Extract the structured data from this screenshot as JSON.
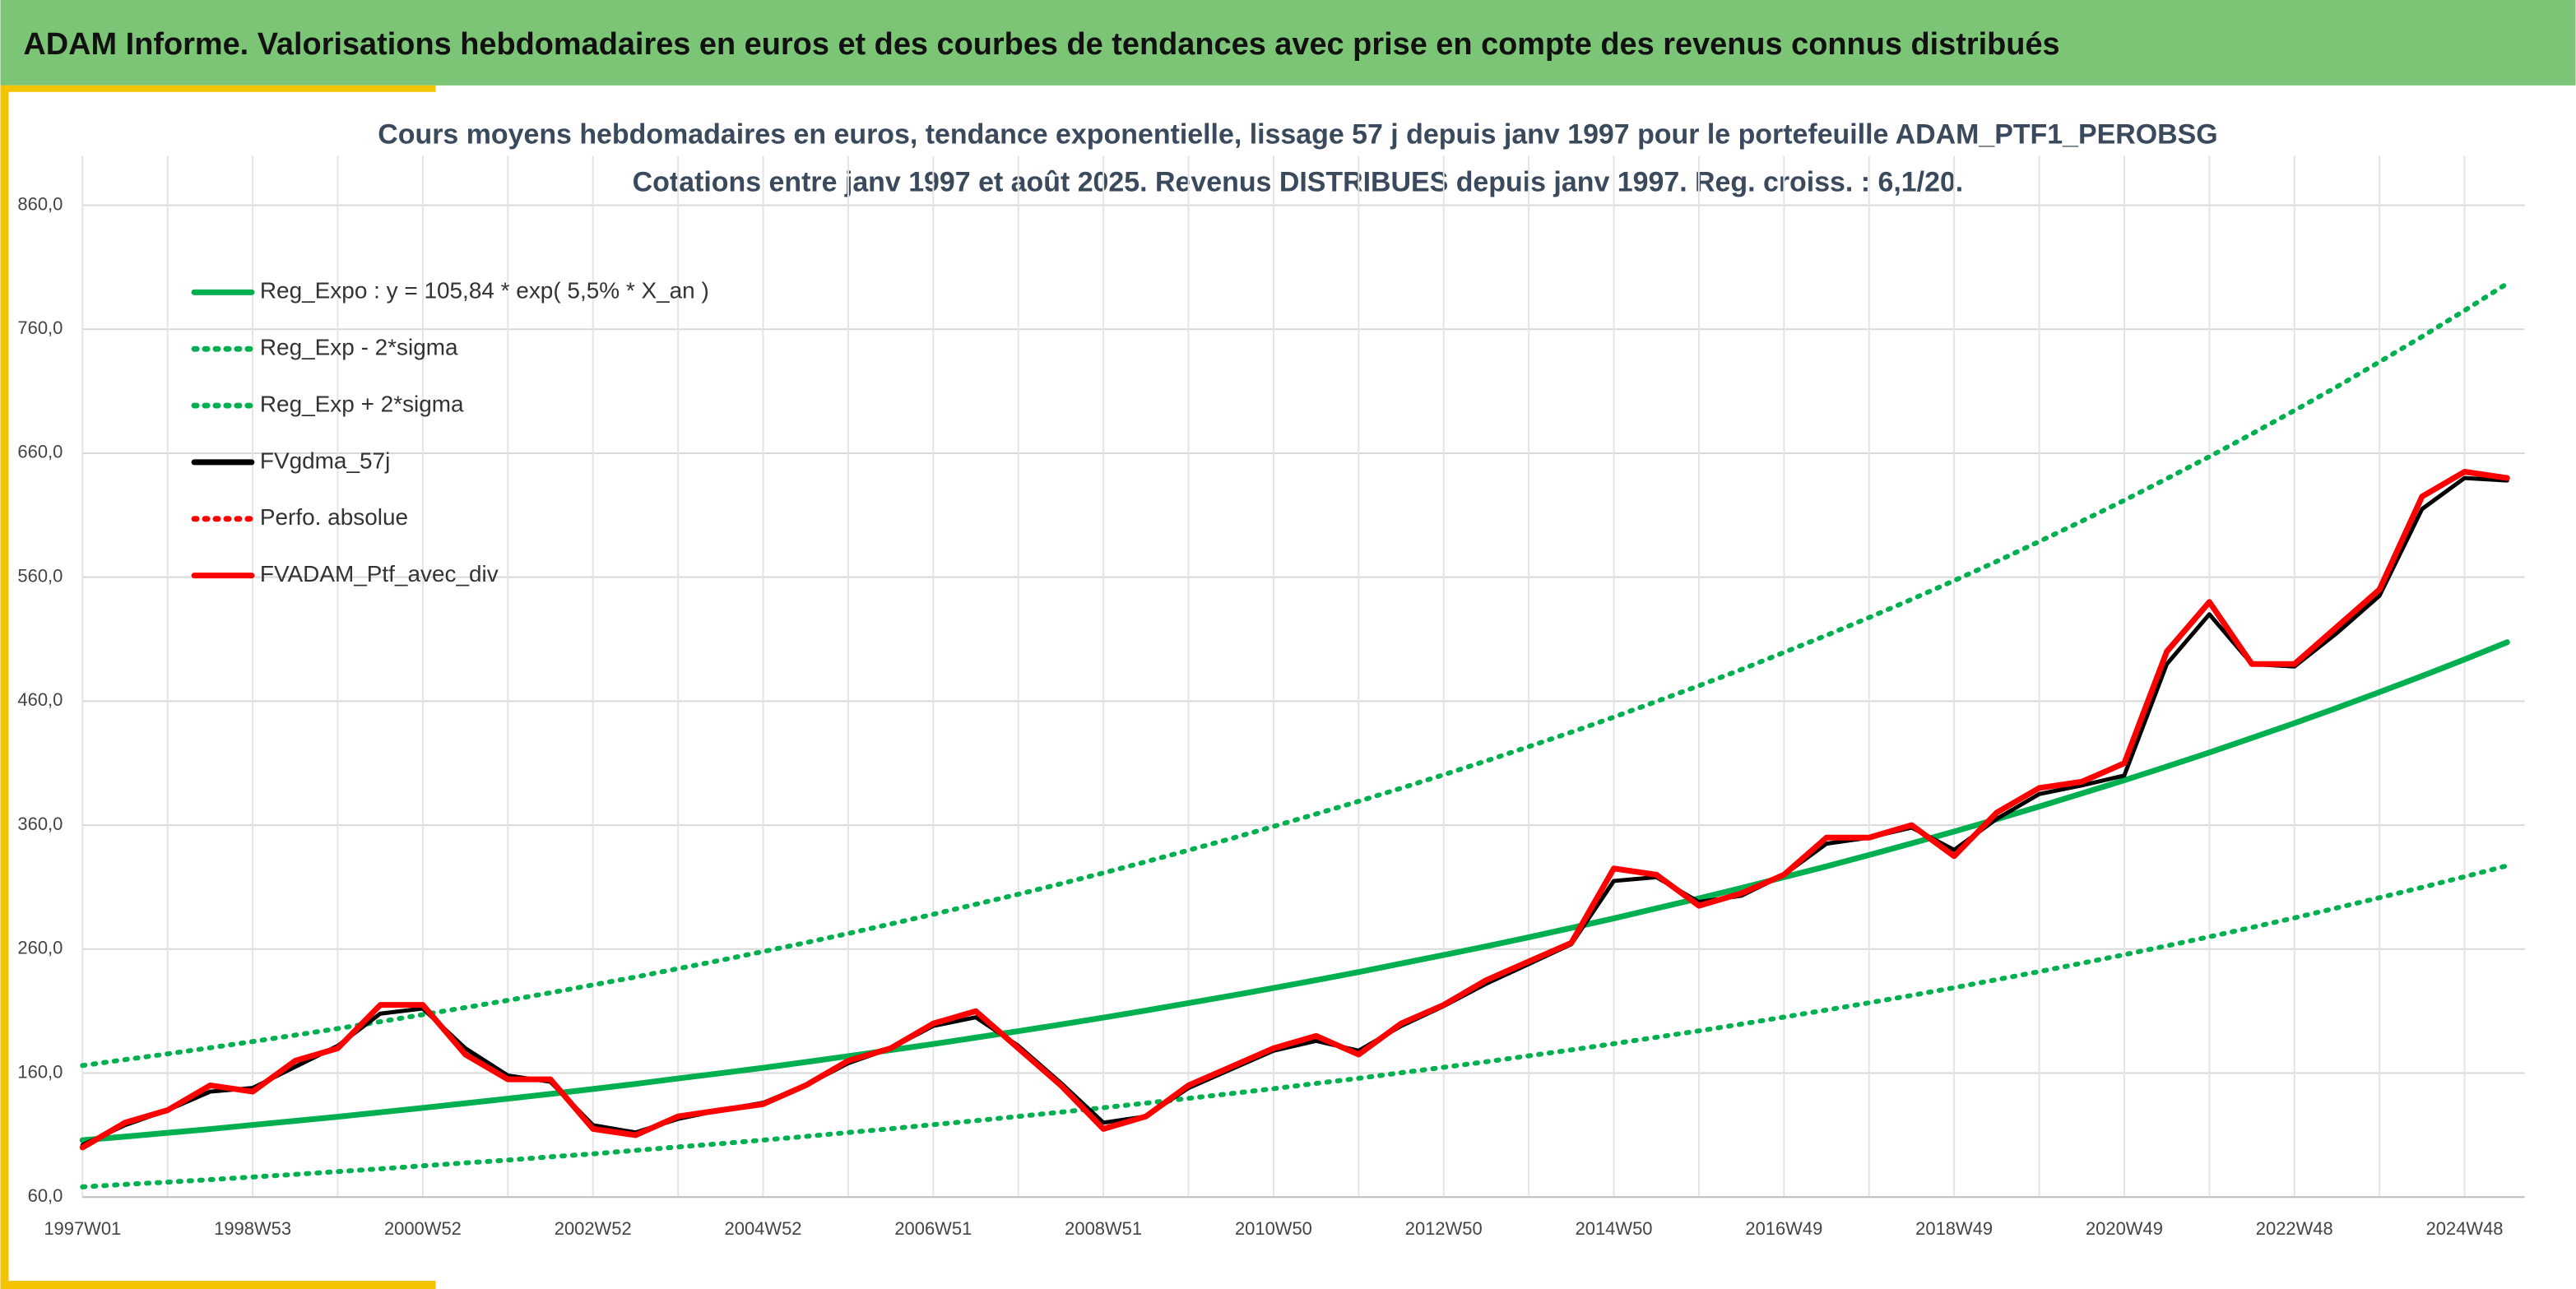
{
  "header": {
    "title": "ADAM Informe. Valorisations hebdomadaires en euros et des courbes de tendances avec prise en compte des revenus connus distribués"
  },
  "chart_data": {
    "type": "line",
    "title": "Cours moyens hebdomadaires en euros, tendance exponentielle, lissage 57 j depuis janv 1997 pour le portefeuille ADAM_PTF1_PEROBSG",
    "subtitle": "Cotations entre janv 1997 et août 2025. Revenus DISTRIBUES depuis janv 1997. Reg. croiss. : 6,1/20.",
    "categories": [
      "1997W01",
      null,
      null,
      null,
      "1998W53",
      null,
      null,
      null,
      "2000W52",
      null,
      null,
      null,
      "2002W52",
      null,
      null,
      null,
      "2004W52",
      null,
      null,
      null,
      "2006W51",
      null,
      null,
      null,
      "2008W51",
      null,
      null,
      null,
      "2010W50",
      null,
      null,
      null,
      "2012W50",
      null,
      null,
      null,
      "2014W50",
      null,
      null,
      null,
      "2016W49",
      null,
      null,
      null,
      "2018W49",
      null,
      null,
      null,
      "2020W49",
      null,
      null,
      null,
      "2022W48",
      null,
      null,
      null,
      "2024W48",
      null
    ],
    "ylim": [
      60,
      860
    ],
    "yticks": [
      {
        "value": 60,
        "label": "60,0"
      },
      {
        "value": 160,
        "label": "160,0"
      },
      {
        "value": 260,
        "label": "260,0"
      },
      {
        "value": 360,
        "label": "360,0"
      },
      {
        "value": 460,
        "label": "460,0"
      },
      {
        "value": 560,
        "label": "560,0"
      },
      {
        "value": 660,
        "label": "660,0"
      },
      {
        "value": 760,
        "label": "760,0"
      },
      {
        "value": 860,
        "label": "860,0"
      }
    ],
    "grid": true,
    "series": [
      {
        "name": "Reg_Expo : y = 105,84 * exp( 5,5% *  X_an )",
        "color": "#00b050",
        "style": "solid",
        "values": [
          105.8,
          108.8,
          111.8,
          114.9,
          118.1,
          121.4,
          124.8,
          128.3,
          131.9,
          135.6,
          139.3,
          143.2,
          147.2,
          151.3,
          155.6,
          159.9,
          164.3,
          168.9,
          173.6,
          178.5,
          183.5,
          188.6,
          193.8,
          199.2,
          204.8,
          210.5,
          216.4,
          222.4,
          228.6,
          235.0,
          241.5,
          248.3,
          255.2,
          262.3,
          269.6,
          277.1,
          284.8,
          292.8,
          300.9,
          309.3,
          318.0,
          326.8,
          335.9,
          345.3,
          354.9,
          364.8,
          375.0,
          385.5,
          396.2,
          407.3,
          418.6,
          430.3,
          442.3,
          454.6,
          467.3,
          480.3,
          493.7,
          507.5
        ]
      },
      {
        "name": "Reg_Exp - 2*sigma",
        "color": "#00b050",
        "style": "dotted",
        "values": [
          68.2,
          70.2,
          72.1,
          74.1,
          76.2,
          78.3,
          80.5,
          82.8,
          85.1,
          87.5,
          89.8,
          92.4,
          94.9,
          97.6,
          100.4,
          103.1,
          106.0,
          108.9,
          112.0,
          115.1,
          118.4,
          121.6,
          125.0,
          128.5,
          132.1,
          135.8,
          139.6,
          143.4,
          147.4,
          151.6,
          155.8,
          160.2,
          164.6,
          169.2,
          173.9,
          178.7,
          183.7,
          188.9,
          194.1,
          199.5,
          205.1,
          210.8,
          216.7,
          222.7,
          228.9,
          235.3,
          241.9,
          248.6,
          255.5,
          262.7,
          270.0,
          277.5,
          285.2,
          293.2,
          301.4,
          309.8,
          318.4,
          327.3
        ]
      },
      {
        "name": "Reg_Exp + 2*sigma",
        "color": "#00b050",
        "style": "dotted",
        "values": [
          166.1,
          170.8,
          175.5,
          180.4,
          185.4,
          190.6,
          195.9,
          201.4,
          207.1,
          212.9,
          218.7,
          224.8,
          231.1,
          237.5,
          244.3,
          251.0,
          258.0,
          265.2,
          272.6,
          280.2,
          288.1,
          296.1,
          304.3,
          312.7,
          321.5,
          330.5,
          339.7,
          349.2,
          358.9,
          369.0,
          379.2,
          389.8,
          400.7,
          411.8,
          423.3,
          435.0,
          447.1,
          459.7,
          472.4,
          485.6,
          499.3,
          513.1,
          527.4,
          542.1,
          557.2,
          572.7,
          588.8,
          605.2,
          622.0,
          639.5,
          657.2,
          675.6,
          694.4,
          713.7,
          733.7,
          754.1,
          775.1,
          796.8
        ]
      },
      {
        "name": "FVgdma_57j",
        "color": "#000000",
        "style": "solid",
        "values": [
          102,
          118,
          130,
          145,
          148,
          165,
          182,
          208,
          212,
          180,
          158,
          153,
          118,
          112,
          123,
          130,
          136,
          150,
          168,
          180,
          198,
          205,
          182,
          152,
          120,
          125,
          148,
          163,
          178,
          186,
          178,
          198,
          214,
          232,
          248,
          264,
          315,
          318,
          298,
          303,
          320,
          345,
          350,
          358,
          340,
          365,
          385,
          392,
          400,
          490,
          530,
          490,
          488,
          515,
          545,
          615,
          640,
          638
        ]
      },
      {
        "name": "Perfo. absolue",
        "color": "#ff0000",
        "style": "dotted",
        "values": [
          100,
          120,
          130,
          150,
          145,
          170,
          180,
          215,
          215,
          175,
          155,
          155,
          115,
          110,
          125,
          130,
          135,
          150,
          170,
          180,
          200,
          210,
          180,
          150,
          115,
          125,
          150,
          165,
          180,
          190,
          175,
          200,
          215,
          235,
          250,
          265,
          325,
          320,
          295,
          305,
          320,
          350,
          350,
          360,
          335,
          370,
          390,
          395,
          410,
          500,
          540,
          490,
          490,
          520,
          550,
          625,
          645,
          640
        ]
      },
      {
        "name": "FVADAM_Ptf_avec_div",
        "color": "#ff0000",
        "style": "solid",
        "values": [
          100,
          120,
          130,
          150,
          145,
          170,
          180,
          215,
          215,
          175,
          155,
          155,
          115,
          110,
          125,
          130,
          135,
          150,
          170,
          180,
          200,
          210,
          180,
          150,
          115,
          125,
          150,
          165,
          180,
          190,
          175,
          200,
          215,
          235,
          250,
          265,
          325,
          320,
          295,
          305,
          320,
          350,
          350,
          360,
          335,
          370,
          390,
          395,
          410,
          500,
          540,
          490,
          490,
          520,
          550,
          625,
          645,
          640
        ]
      }
    ]
  }
}
